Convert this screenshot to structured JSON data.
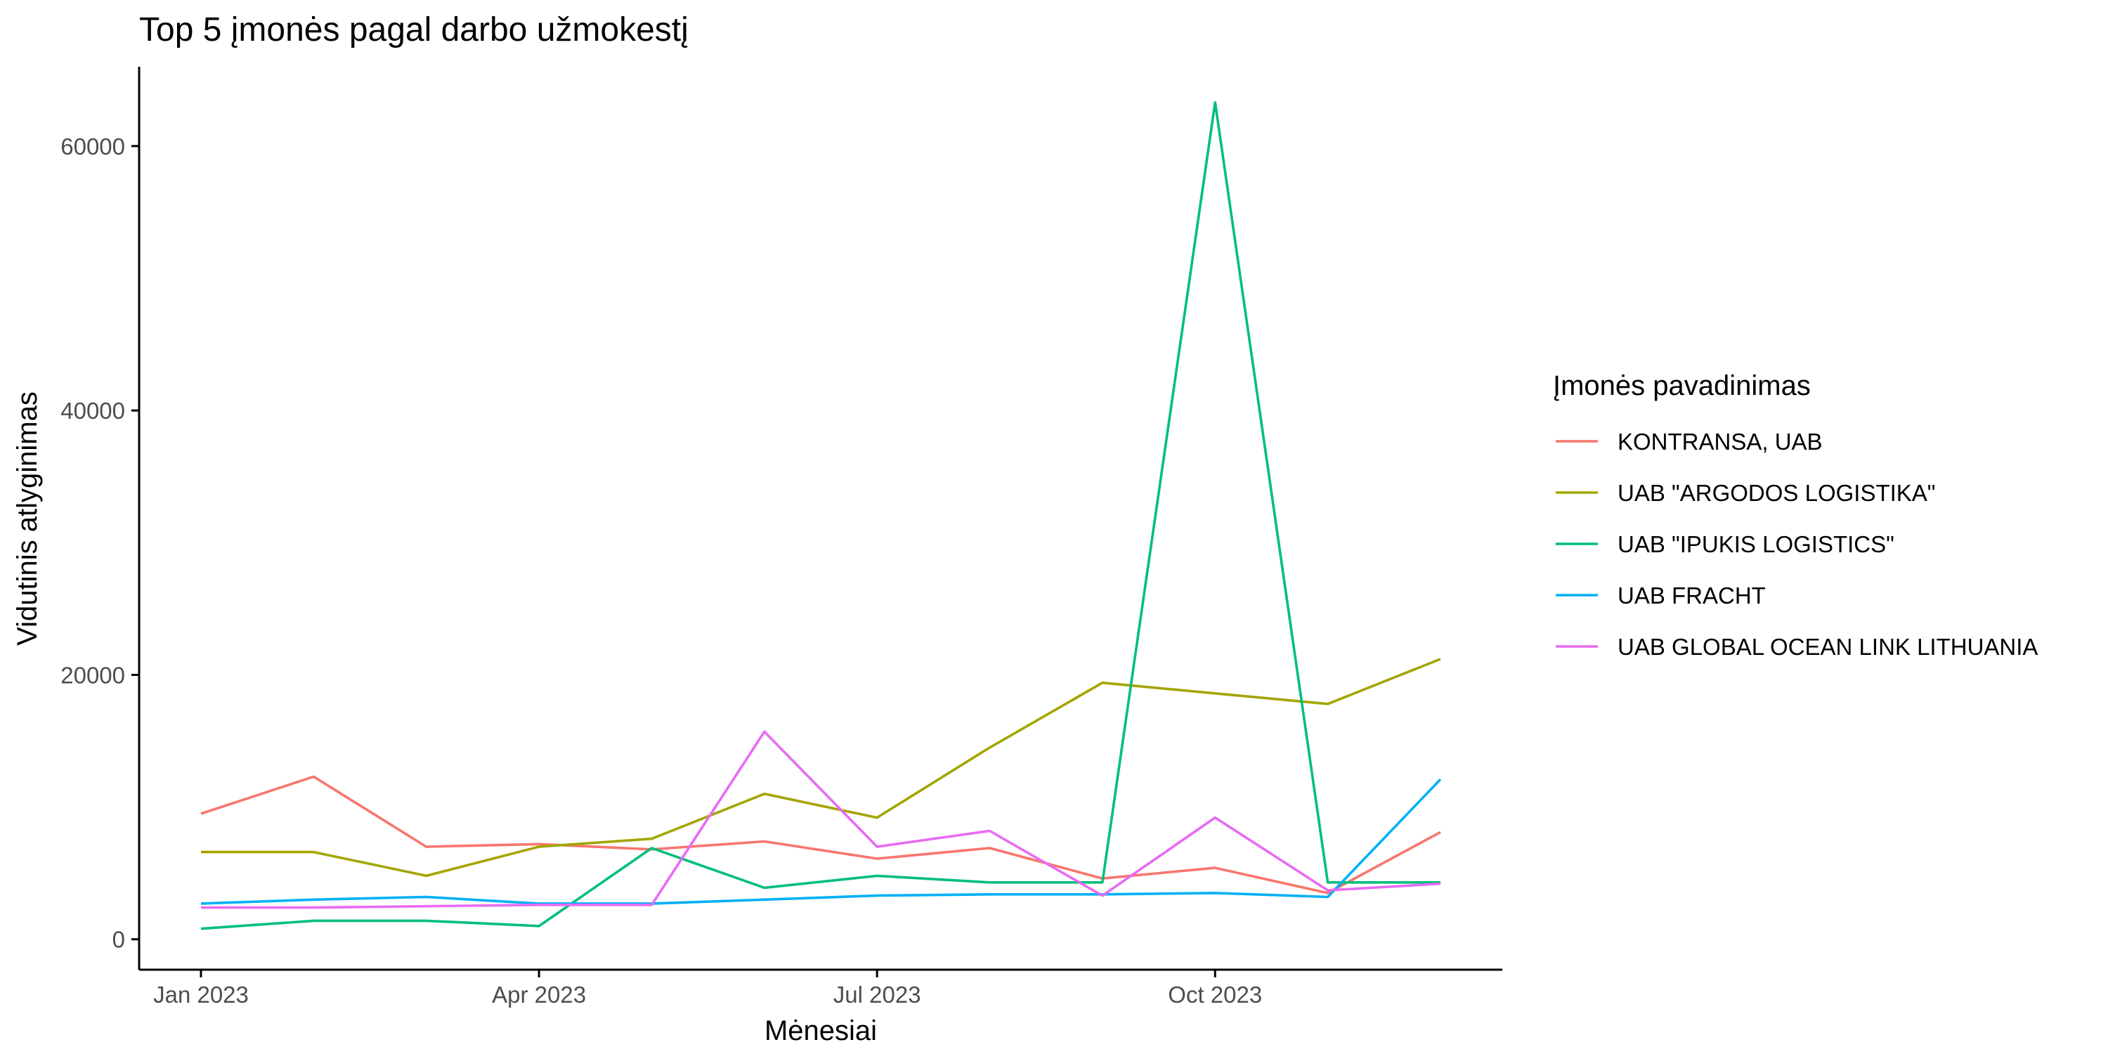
{
  "chart_data": {
    "type": "line",
    "title": "Top 5 įmonės pagal darbo užmokestį",
    "xlabel": "Mėnesiai",
    "ylabel": "Vidutinis atlyginimas",
    "x": [
      "2023-01",
      "2023-02",
      "2023-03",
      "2023-04",
      "2023-05",
      "2023-06",
      "2023-07",
      "2023-08",
      "2023-09",
      "2023-10",
      "2023-11",
      "2023-12"
    ],
    "x_ticks": [
      {
        "value": "2023-01",
        "label": "Jan 2023"
      },
      {
        "value": "2023-04",
        "label": "Apr 2023"
      },
      {
        "value": "2023-07",
        "label": "Jul 2023"
      },
      {
        "value": "2023-10",
        "label": "Oct 2023"
      }
    ],
    "y_ticks": [
      0,
      20000,
      40000,
      60000
    ],
    "ylim": [
      -2300,
      66000
    ],
    "grid": false,
    "legend": {
      "title": "Įmonės pavadinimas",
      "position": "right"
    },
    "series": [
      {
        "name": "KONTRANSA, UAB",
        "color": "#F8766D",
        "values": [
          9500,
          12300,
          7000,
          7200,
          6800,
          7400,
          6100,
          6900,
          4600,
          5400,
          3500,
          8100
        ]
      },
      {
        "name": "UAB \"ARGODOS LOGISTIKA\"",
        "color": "#A3A500",
        "values": [
          6600,
          6600,
          4800,
          7000,
          7600,
          11000,
          9200,
          14500,
          19400,
          18600,
          17800,
          21200
        ]
      },
      {
        "name": "UAB \"IPUKIS LOGISTICS\"",
        "color": "#00BF7D",
        "values": [
          800,
          1400,
          1400,
          1000,
          6900,
          3900,
          4800,
          4300,
          4300,
          63300,
          4300,
          4300
        ]
      },
      {
        "name": "UAB FRACHT",
        "color": "#00B0F6",
        "values": [
          2700,
          3000,
          3200,
          2700,
          2700,
          3000,
          3300,
          3400,
          3400,
          3500,
          3200,
          12100
        ]
      },
      {
        "name": "UAB GLOBAL OCEAN LINK LITHUANIA",
        "color": "#E76BF3",
        "values": [
          2400,
          2400,
          2500,
          2600,
          2600,
          15700,
          7000,
          8200,
          3300,
          9200,
          3700,
          4200
        ]
      }
    ]
  }
}
